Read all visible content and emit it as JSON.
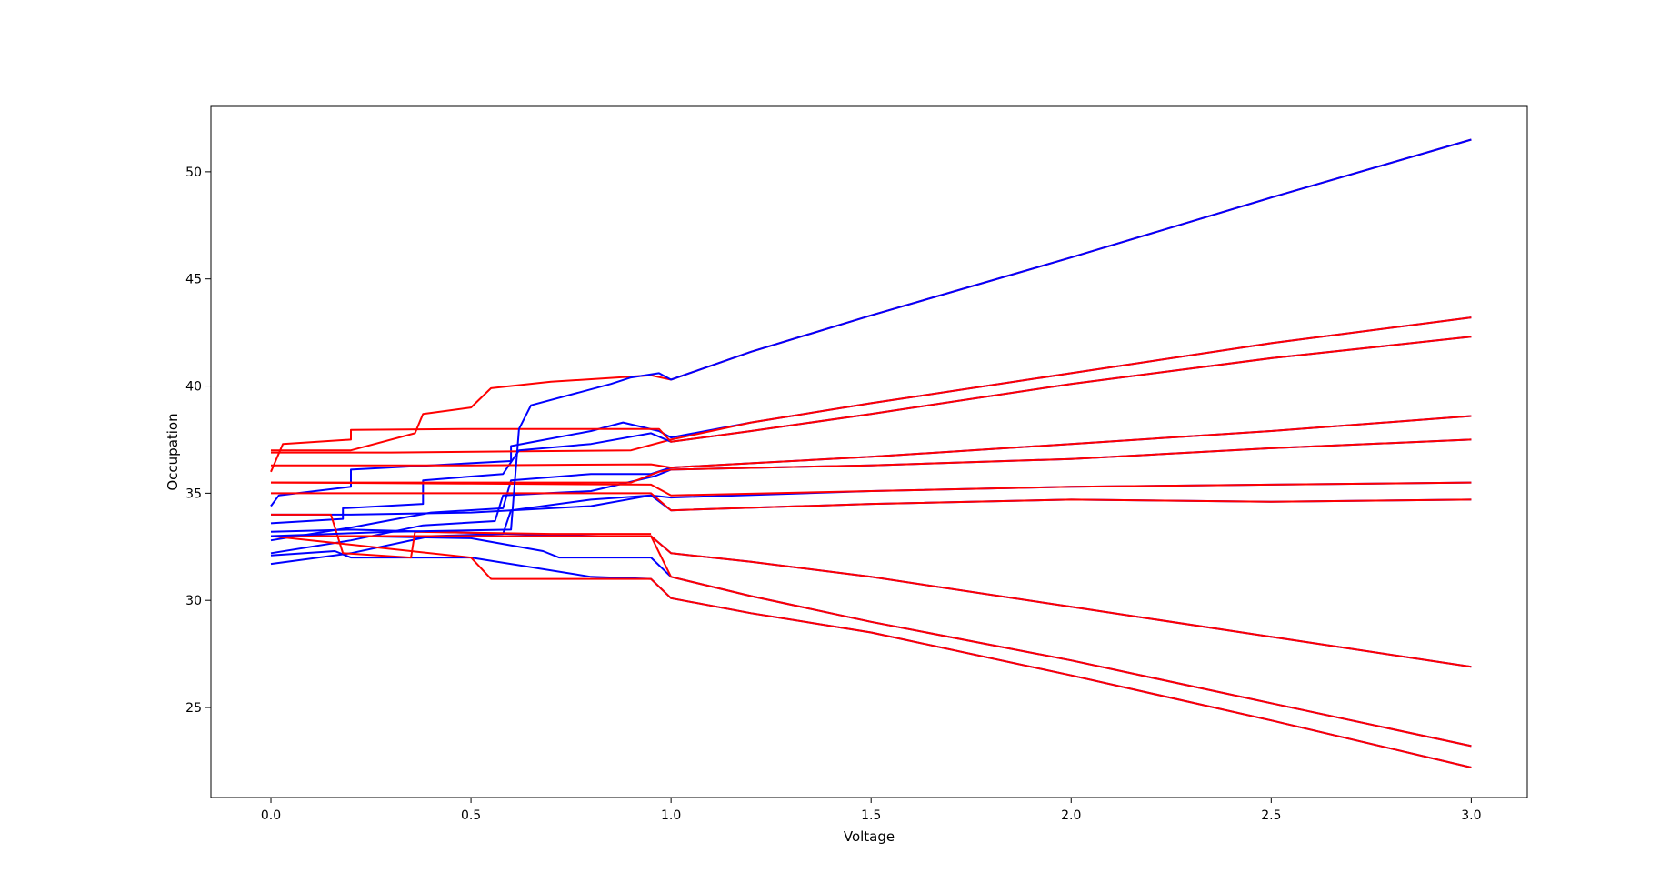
{
  "chart_data": {
    "type": "line",
    "title": "",
    "xlabel": "Voltage",
    "ylabel": "Occupation",
    "xlim": [
      -0.15,
      3.14
    ],
    "ylim": [
      20.8,
      53.05
    ],
    "xticks": [
      0.0,
      0.5,
      1.0,
      1.5,
      2.0,
      2.5,
      3.0
    ],
    "xtick_labels": [
      "0.0",
      "0.5",
      "1.0",
      "1.5",
      "2.0",
      "2.5",
      "3.0"
    ],
    "yticks": [
      25,
      30,
      35,
      40,
      45,
      50
    ],
    "ytick_labels": [
      "25",
      "30",
      "35",
      "40",
      "45",
      "50"
    ],
    "grid": false,
    "legend": "none",
    "colors": {
      "blue": "#0000ff",
      "red": "#ff0000",
      "axes": "#000000",
      "background": "#ffffff"
    },
    "series": [
      {
        "color": "#0000ff",
        "points": [
          [
            0,
            34.4
          ],
          [
            0.02,
            34.9
          ],
          [
            0.2,
            35.3
          ],
          [
            0.2,
            36.1
          ],
          [
            0.4,
            36.3
          ],
          [
            0.6,
            36.5
          ],
          [
            0.6,
            37.2
          ],
          [
            0.8,
            37.9
          ],
          [
            0.88,
            38.3
          ],
          [
            0.97,
            37.9
          ],
          [
            1.0,
            37.6
          ],
          [
            1.2,
            38.3
          ],
          [
            1.5,
            39.2
          ],
          [
            2.0,
            40.6
          ],
          [
            2.5,
            42.0
          ],
          [
            3.0,
            43.2
          ]
        ]
      },
      {
        "color": "#ff0000",
        "points": [
          [
            0,
            36.9
          ],
          [
            0.3,
            36.9
          ],
          [
            0.6,
            36.95
          ],
          [
            0.9,
            37.0
          ],
          [
            1.0,
            37.5
          ],
          [
            1.2,
            38.3
          ],
          [
            1.5,
            39.2
          ],
          [
            2.0,
            40.6
          ],
          [
            2.5,
            42.0
          ],
          [
            3.0,
            43.2
          ]
        ]
      },
      {
        "color": "#0000ff",
        "points": [
          [
            0,
            33.6
          ],
          [
            0.18,
            33.8
          ],
          [
            0.18,
            34.3
          ],
          [
            0.38,
            34.5
          ],
          [
            0.38,
            35.6
          ],
          [
            0.58,
            35.9
          ],
          [
            0.62,
            37.0
          ],
          [
            0.8,
            37.3
          ],
          [
            0.95,
            37.8
          ],
          [
            1.0,
            37.4
          ],
          [
            1.2,
            37.9
          ],
          [
            1.5,
            38.7
          ],
          [
            2.0,
            40.1
          ],
          [
            2.5,
            41.3
          ],
          [
            3.0,
            42.3
          ]
        ]
      },
      {
        "color": "#ff0000",
        "points": [
          [
            0,
            36.0
          ],
          [
            0.03,
            37.3
          ],
          [
            0.2,
            37.5
          ],
          [
            0.2,
            37.95
          ],
          [
            0.5,
            38.0
          ],
          [
            0.97,
            38.0
          ],
          [
            1.0,
            37.4
          ],
          [
            1.2,
            37.9
          ],
          [
            1.5,
            38.7
          ],
          [
            2.0,
            40.1
          ],
          [
            2.5,
            41.3
          ],
          [
            3.0,
            42.3
          ]
        ]
      },
      {
        "color": "#0000ff",
        "points": [
          [
            0,
            32.8
          ],
          [
            0.2,
            33.4
          ],
          [
            0.4,
            34.1
          ],
          [
            0.58,
            34.3
          ],
          [
            0.6,
            35.6
          ],
          [
            0.8,
            35.9
          ],
          [
            0.95,
            35.9
          ],
          [
            1.0,
            36.2
          ],
          [
            1.5,
            36.7
          ],
          [
            2.0,
            37.3
          ],
          [
            2.5,
            37.9
          ],
          [
            3.0,
            38.6
          ]
        ]
      },
      {
        "color": "#ff0000",
        "points": [
          [
            0,
            36.3
          ],
          [
            0.5,
            36.3
          ],
          [
            0.95,
            36.35
          ],
          [
            1.0,
            36.2
          ],
          [
            1.5,
            36.7
          ],
          [
            2.0,
            37.3
          ],
          [
            2.5,
            37.9
          ],
          [
            3.0,
            38.6
          ]
        ]
      },
      {
        "color": "#0000ff",
        "points": [
          [
            0,
            32.2
          ],
          [
            0.2,
            32.8
          ],
          [
            0.38,
            33.5
          ],
          [
            0.56,
            33.7
          ],
          [
            0.58,
            34.9
          ],
          [
            0.8,
            35.1
          ],
          [
            0.96,
            35.8
          ],
          [
            1.0,
            36.1
          ],
          [
            1.5,
            36.3
          ],
          [
            2.0,
            36.6
          ],
          [
            2.5,
            37.1
          ],
          [
            3.0,
            37.5
          ]
        ]
      },
      {
        "color": "#ff0000",
        "points": [
          [
            0,
            35.5
          ],
          [
            0.5,
            35.5
          ],
          [
            0.9,
            35.5
          ],
          [
            0.97,
            36.0
          ],
          [
            1.0,
            36.1
          ],
          [
            1.5,
            36.3
          ],
          [
            2.0,
            36.6
          ],
          [
            2.5,
            37.1
          ],
          [
            3.0,
            37.5
          ]
        ]
      },
      {
        "color": "#0000ff",
        "points": [
          [
            0,
            34.0
          ],
          [
            0.2,
            34.0
          ],
          [
            0.5,
            34.1
          ],
          [
            0.8,
            34.4
          ],
          [
            0.95,
            34.9
          ],
          [
            1.0,
            34.8
          ],
          [
            1.5,
            35.1
          ],
          [
            2.0,
            35.3
          ],
          [
            2.5,
            35.4
          ],
          [
            3.0,
            35.5
          ]
        ]
      },
      {
        "color": "#ff0000",
        "points": [
          [
            0,
            35.5
          ],
          [
            0.5,
            35.45
          ],
          [
            0.95,
            35.4
          ],
          [
            1.0,
            34.9
          ],
          [
            1.5,
            35.1
          ],
          [
            2.0,
            35.3
          ],
          [
            2.5,
            35.4
          ],
          [
            3.0,
            35.5
          ]
        ]
      },
      {
        "color": "#0000ff",
        "points": [
          [
            0,
            31.7
          ],
          [
            0.2,
            32.2
          ],
          [
            0.4,
            33.0
          ],
          [
            0.58,
            33.1
          ],
          [
            0.6,
            34.2
          ],
          [
            0.8,
            34.7
          ],
          [
            0.95,
            34.9
          ],
          [
            1.0,
            34.2
          ],
          [
            1.5,
            34.5
          ],
          [
            2.0,
            34.7
          ],
          [
            2.5,
            34.6
          ],
          [
            3.0,
            34.7
          ]
        ]
      },
      {
        "color": "#ff0000",
        "points": [
          [
            0,
            35.0
          ],
          [
            0.5,
            35.0
          ],
          [
            0.95,
            35.0
          ],
          [
            1.0,
            34.2
          ],
          [
            1.5,
            34.5
          ],
          [
            2.0,
            34.7
          ],
          [
            2.5,
            34.6
          ],
          [
            3.0,
            34.7
          ]
        ]
      },
      {
        "color": "#0000ff",
        "points": [
          [
            0,
            33.2
          ],
          [
            0.2,
            33.3
          ],
          [
            0.4,
            33.2
          ],
          [
            0.6,
            33.1
          ],
          [
            0.82,
            33.0
          ],
          [
            0.95,
            33.0
          ],
          [
            1.0,
            32.2
          ],
          [
            1.2,
            31.8
          ],
          [
            1.5,
            31.1
          ],
          [
            2.0,
            29.7
          ],
          [
            2.5,
            28.3
          ],
          [
            3.0,
            26.9
          ]
        ]
      },
      {
        "color": "#ff0000",
        "points": [
          [
            0,
            33.0
          ],
          [
            0.5,
            33.0
          ],
          [
            0.95,
            33.0
          ],
          [
            1.0,
            32.2
          ],
          [
            1.2,
            31.8
          ],
          [
            1.5,
            31.1
          ],
          [
            2.0,
            29.7
          ],
          [
            2.5,
            28.3
          ],
          [
            3.0,
            26.9
          ]
        ]
      },
      {
        "color": "#0000ff",
        "points": [
          [
            0,
            33.0
          ],
          [
            0.2,
            33.0
          ],
          [
            0.5,
            32.9
          ],
          [
            0.68,
            32.3
          ],
          [
            0.72,
            32.0
          ],
          [
            0.95,
            32.0
          ],
          [
            1.0,
            31.1
          ],
          [
            1.2,
            30.2
          ],
          [
            1.5,
            29.0
          ],
          [
            2.0,
            27.2
          ],
          [
            2.5,
            25.2
          ],
          [
            3.0,
            23.2
          ]
        ]
      },
      {
        "color": "#ff0000",
        "points": [
          [
            0,
            33.0
          ],
          [
            0.5,
            33.0
          ],
          [
            0.95,
            33.0
          ],
          [
            1.0,
            31.1
          ],
          [
            1.2,
            30.2
          ],
          [
            1.5,
            29.0
          ],
          [
            2.0,
            27.2
          ],
          [
            2.5,
            25.2
          ],
          [
            3.0,
            23.2
          ]
        ]
      },
      {
        "color": "#0000ff",
        "points": [
          [
            0,
            32.1
          ],
          [
            0.16,
            32.3
          ],
          [
            0.2,
            32.0
          ],
          [
            0.5,
            32.0
          ],
          [
            0.8,
            31.1
          ],
          [
            0.95,
            31.0
          ],
          [
            1.0,
            30.1
          ],
          [
            1.2,
            29.4
          ],
          [
            1.5,
            28.5
          ],
          [
            2.0,
            26.5
          ],
          [
            2.5,
            24.4
          ],
          [
            3.0,
            22.2
          ]
        ]
      },
      {
        "color": "#ff0000",
        "points": [
          [
            0,
            33.0
          ],
          [
            0.5,
            32.0
          ],
          [
            0.55,
            31.0
          ],
          [
            0.95,
            31.0
          ],
          [
            1.0,
            30.1
          ],
          [
            1.2,
            29.4
          ],
          [
            1.5,
            28.5
          ],
          [
            2.0,
            26.5
          ],
          [
            2.5,
            24.4
          ],
          [
            3.0,
            22.2
          ]
        ]
      },
      {
        "color": "#ff0000",
        "points": [
          [
            0,
            34.0
          ],
          [
            0.15,
            34.0
          ],
          [
            0.18,
            32.2
          ],
          [
            0.35,
            32.0
          ],
          [
            0.36,
            33.2
          ],
          [
            0.7,
            33.1
          ],
          [
            0.95,
            33.1
          ]
        ]
      },
      {
        "color": "#ff0000",
        "points": [
          [
            0,
            37.0
          ],
          [
            0.2,
            37.0
          ],
          [
            0.36,
            37.8
          ],
          [
            0.38,
            38.7
          ],
          [
            0.5,
            39.0
          ],
          [
            0.55,
            39.9
          ],
          [
            0.7,
            40.2
          ],
          [
            0.95,
            40.5
          ],
          [
            1.0,
            40.3
          ],
          [
            1.2,
            41.6
          ],
          [
            1.5,
            43.3
          ],
          [
            2.0,
            46.0
          ],
          [
            2.5,
            48.8
          ],
          [
            3.0,
            51.5
          ]
        ]
      },
      {
        "color": "#0000ff",
        "points": [
          [
            0,
            33.0
          ],
          [
            0.3,
            33.2
          ],
          [
            0.6,
            33.3
          ],
          [
            0.62,
            38.0
          ],
          [
            0.65,
            39.1
          ],
          [
            0.85,
            40.1
          ],
          [
            0.9,
            40.4
          ],
          [
            0.97,
            40.6
          ],
          [
            1.0,
            40.3
          ],
          [
            1.2,
            41.6
          ],
          [
            1.5,
            43.3
          ],
          [
            2.0,
            46.0
          ],
          [
            2.5,
            48.8
          ],
          [
            3.0,
            51.5
          ]
        ]
      }
    ]
  }
}
